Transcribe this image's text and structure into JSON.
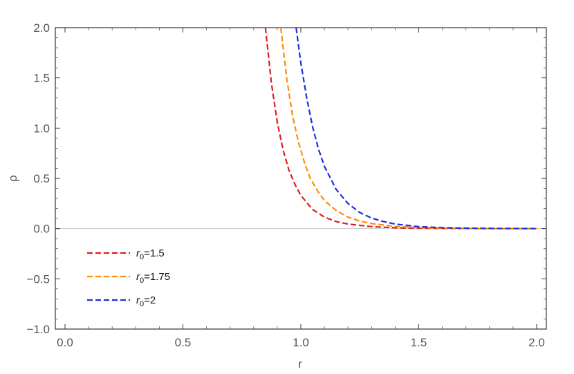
{
  "chart_data": {
    "type": "line",
    "title": "",
    "xlabel": "r",
    "ylabel": "ρ",
    "xlim": [
      0,
      2
    ],
    "ylim": [
      -1,
      2
    ],
    "x_ticks": [
      "0.0",
      "0.5",
      "1.0",
      "1.5",
      "2.0"
    ],
    "x_tick_values": [
      0,
      0.5,
      1,
      1.5,
      2
    ],
    "y_ticks": [
      "-1.0",
      "-0.5",
      "0.0",
      "0.5",
      "1.0",
      "1.5",
      "2.0"
    ],
    "y_tick_values": [
      -1,
      -0.5,
      0,
      0.5,
      1,
      1.5,
      2
    ],
    "legend_position": "left-middle",
    "series": [
      {
        "name": "r0=1.5",
        "legend_base": "r",
        "legend_sub": "0",
        "legend_value": "=1.5",
        "color": "#e31a1c",
        "style": "dashed",
        "x": [
          0.85,
          0.875,
          0.9,
          0.925,
          0.95,
          0.975,
          1.0,
          1.05,
          1.1,
          1.15,
          1.2,
          1.3,
          1.4,
          1.5,
          1.6,
          1.7,
          1.8,
          1.9,
          2.0
        ],
        "y": [
          2.0,
          1.45,
          1.06,
          0.78,
          0.58,
          0.44,
          0.33,
          0.19,
          0.115,
          0.07,
          0.045,
          0.02,
          0.008,
          0.004,
          0.002,
          0.001,
          0.0,
          0.0,
          0.0
        ]
      },
      {
        "name": "r0=1.75",
        "legend_base": "r",
        "legend_sub": "0",
        "legend_value": "=1.75",
        "color": "#ff8c00",
        "style": "dashed",
        "x": [
          0.915,
          0.94,
          0.965,
          0.99,
          1.015,
          1.04,
          1.075,
          1.1,
          1.15,
          1.2,
          1.25,
          1.3,
          1.4,
          1.5,
          1.6,
          1.7,
          1.8,
          1.9,
          2.0
        ],
        "y": [
          2.0,
          1.5,
          1.12,
          0.86,
          0.66,
          0.5,
          0.36,
          0.28,
          0.18,
          0.115,
          0.075,
          0.05,
          0.022,
          0.01,
          0.005,
          0.002,
          0.001,
          0.0,
          0.0
        ]
      },
      {
        "name": "r0=2",
        "legend_base": "r",
        "legend_sub": "0",
        "legend_value": "=2",
        "color": "#1b2ee0",
        "style": "dashed",
        "x": [
          0.98,
          1.0,
          1.025,
          1.05,
          1.075,
          1.1,
          1.15,
          1.2,
          1.25,
          1.3,
          1.35,
          1.4,
          1.5,
          1.6,
          1.7,
          1.8,
          1.9,
          2.0
        ],
        "y": [
          2.0,
          1.65,
          1.3,
          1.01,
          0.79,
          0.62,
          0.39,
          0.25,
          0.16,
          0.105,
          0.07,
          0.045,
          0.02,
          0.009,
          0.004,
          0.002,
          0.001,
          0.0
        ]
      }
    ]
  }
}
